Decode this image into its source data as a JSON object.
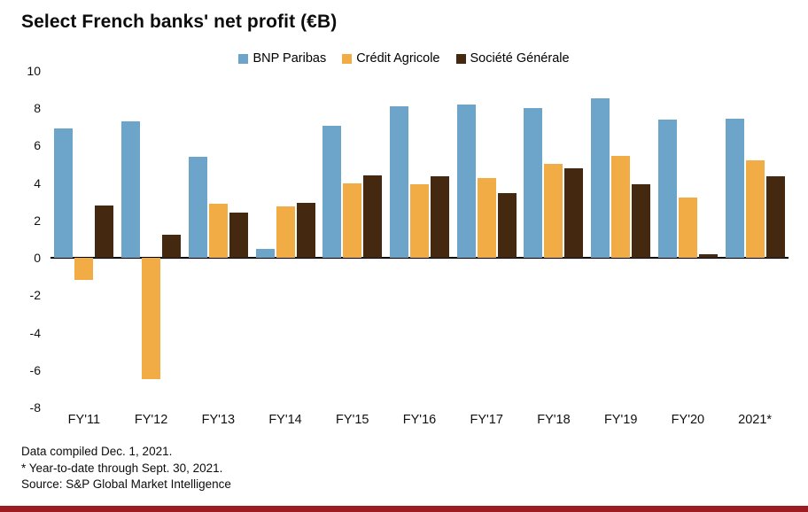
{
  "chart_data": {
    "type": "bar",
    "title": "Select French banks' net profit (€B)",
    "categories": [
      "FY'11",
      "FY'12",
      "FY'13",
      "FY'14",
      "FY'15",
      "FY'16",
      "FY'17",
      "FY'18",
      "FY'19",
      "FY'20",
      "2021*"
    ],
    "series": [
      {
        "name": "BNP Paribas",
        "color": "#6CA5C9",
        "values": [
          6.9,
          7.3,
          5.4,
          0.5,
          7.05,
          8.1,
          8.2,
          8.0,
          8.55,
          7.4,
          7.45
        ]
      },
      {
        "name": "Crédit Agricole",
        "color": "#F2AC46",
        "values": [
          -1.2,
          -6.5,
          2.9,
          2.75,
          4.0,
          3.95,
          4.25,
          5.05,
          5.45,
          3.25,
          5.2
        ]
      },
      {
        "name": "Société Générale",
        "color": "#44280F",
        "values": [
          2.8,
          1.25,
          2.4,
          2.95,
          4.4,
          4.35,
          3.45,
          4.8,
          3.95,
          0.2,
          4.35
        ]
      }
    ],
    "ylim": [
      -8,
      10
    ],
    "ytick_step": 2,
    "grid": false,
    "legend_position": "top"
  },
  "footnotes": [
    "Data compiled Dec. 1, 2021.",
    "* Year-to-date through Sept. 30, 2021.",
    "Source: S&P Global Market Intelligence"
  ],
  "colors": {
    "footer_stripe": "#9D1C21",
    "zero_line": "#000000"
  }
}
